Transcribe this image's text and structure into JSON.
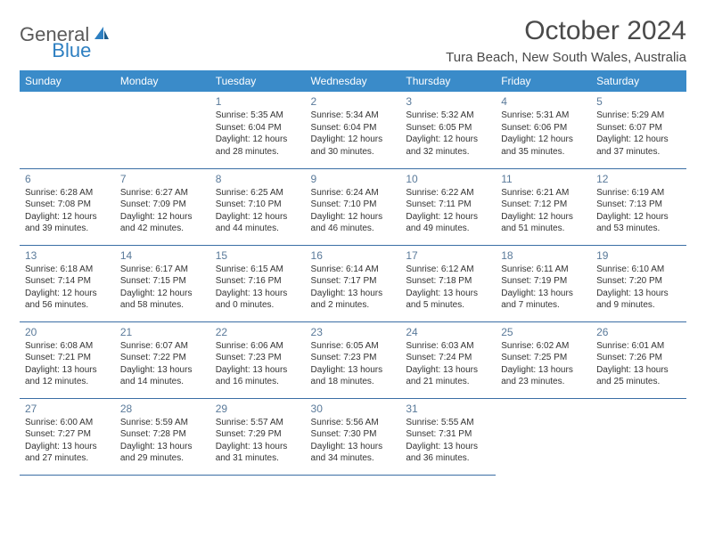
{
  "logo": {
    "part1": "General",
    "part2": "Blue"
  },
  "title": "October 2024",
  "location": "Tura Beach, New South Wales, Australia",
  "colors": {
    "header_bg": "#3a8bc9",
    "header_text": "#ffffff",
    "border": "#3a6ea5",
    "daynum": "#5a7a9a",
    "logo_gray": "#5a5a5a",
    "logo_blue": "#2d7fc1"
  },
  "weekdays": [
    "Sunday",
    "Monday",
    "Tuesday",
    "Wednesday",
    "Thursday",
    "Friday",
    "Saturday"
  ],
  "weeks": [
    [
      null,
      null,
      {
        "n": "1",
        "sr": "Sunrise: 5:35 AM",
        "ss": "Sunset: 6:04 PM",
        "d1": "Daylight: 12 hours",
        "d2": "and 28 minutes."
      },
      {
        "n": "2",
        "sr": "Sunrise: 5:34 AM",
        "ss": "Sunset: 6:04 PM",
        "d1": "Daylight: 12 hours",
        "d2": "and 30 minutes."
      },
      {
        "n": "3",
        "sr": "Sunrise: 5:32 AM",
        "ss": "Sunset: 6:05 PM",
        "d1": "Daylight: 12 hours",
        "d2": "and 32 minutes."
      },
      {
        "n": "4",
        "sr": "Sunrise: 5:31 AM",
        "ss": "Sunset: 6:06 PM",
        "d1": "Daylight: 12 hours",
        "d2": "and 35 minutes."
      },
      {
        "n": "5",
        "sr": "Sunrise: 5:29 AM",
        "ss": "Sunset: 6:07 PM",
        "d1": "Daylight: 12 hours",
        "d2": "and 37 minutes."
      }
    ],
    [
      {
        "n": "6",
        "sr": "Sunrise: 6:28 AM",
        "ss": "Sunset: 7:08 PM",
        "d1": "Daylight: 12 hours",
        "d2": "and 39 minutes."
      },
      {
        "n": "7",
        "sr": "Sunrise: 6:27 AM",
        "ss": "Sunset: 7:09 PM",
        "d1": "Daylight: 12 hours",
        "d2": "and 42 minutes."
      },
      {
        "n": "8",
        "sr": "Sunrise: 6:25 AM",
        "ss": "Sunset: 7:10 PM",
        "d1": "Daylight: 12 hours",
        "d2": "and 44 minutes."
      },
      {
        "n": "9",
        "sr": "Sunrise: 6:24 AM",
        "ss": "Sunset: 7:10 PM",
        "d1": "Daylight: 12 hours",
        "d2": "and 46 minutes."
      },
      {
        "n": "10",
        "sr": "Sunrise: 6:22 AM",
        "ss": "Sunset: 7:11 PM",
        "d1": "Daylight: 12 hours",
        "d2": "and 49 minutes."
      },
      {
        "n": "11",
        "sr": "Sunrise: 6:21 AM",
        "ss": "Sunset: 7:12 PM",
        "d1": "Daylight: 12 hours",
        "d2": "and 51 minutes."
      },
      {
        "n": "12",
        "sr": "Sunrise: 6:19 AM",
        "ss": "Sunset: 7:13 PM",
        "d1": "Daylight: 12 hours",
        "d2": "and 53 minutes."
      }
    ],
    [
      {
        "n": "13",
        "sr": "Sunrise: 6:18 AM",
        "ss": "Sunset: 7:14 PM",
        "d1": "Daylight: 12 hours",
        "d2": "and 56 minutes."
      },
      {
        "n": "14",
        "sr": "Sunrise: 6:17 AM",
        "ss": "Sunset: 7:15 PM",
        "d1": "Daylight: 12 hours",
        "d2": "and 58 minutes."
      },
      {
        "n": "15",
        "sr": "Sunrise: 6:15 AM",
        "ss": "Sunset: 7:16 PM",
        "d1": "Daylight: 13 hours",
        "d2": "and 0 minutes."
      },
      {
        "n": "16",
        "sr": "Sunrise: 6:14 AM",
        "ss": "Sunset: 7:17 PM",
        "d1": "Daylight: 13 hours",
        "d2": "and 2 minutes."
      },
      {
        "n": "17",
        "sr": "Sunrise: 6:12 AM",
        "ss": "Sunset: 7:18 PM",
        "d1": "Daylight: 13 hours",
        "d2": "and 5 minutes."
      },
      {
        "n": "18",
        "sr": "Sunrise: 6:11 AM",
        "ss": "Sunset: 7:19 PM",
        "d1": "Daylight: 13 hours",
        "d2": "and 7 minutes."
      },
      {
        "n": "19",
        "sr": "Sunrise: 6:10 AM",
        "ss": "Sunset: 7:20 PM",
        "d1": "Daylight: 13 hours",
        "d2": "and 9 minutes."
      }
    ],
    [
      {
        "n": "20",
        "sr": "Sunrise: 6:08 AM",
        "ss": "Sunset: 7:21 PM",
        "d1": "Daylight: 13 hours",
        "d2": "and 12 minutes."
      },
      {
        "n": "21",
        "sr": "Sunrise: 6:07 AM",
        "ss": "Sunset: 7:22 PM",
        "d1": "Daylight: 13 hours",
        "d2": "and 14 minutes."
      },
      {
        "n": "22",
        "sr": "Sunrise: 6:06 AM",
        "ss": "Sunset: 7:23 PM",
        "d1": "Daylight: 13 hours",
        "d2": "and 16 minutes."
      },
      {
        "n": "23",
        "sr": "Sunrise: 6:05 AM",
        "ss": "Sunset: 7:23 PM",
        "d1": "Daylight: 13 hours",
        "d2": "and 18 minutes."
      },
      {
        "n": "24",
        "sr": "Sunrise: 6:03 AM",
        "ss": "Sunset: 7:24 PM",
        "d1": "Daylight: 13 hours",
        "d2": "and 21 minutes."
      },
      {
        "n": "25",
        "sr": "Sunrise: 6:02 AM",
        "ss": "Sunset: 7:25 PM",
        "d1": "Daylight: 13 hours",
        "d2": "and 23 minutes."
      },
      {
        "n": "26",
        "sr": "Sunrise: 6:01 AM",
        "ss": "Sunset: 7:26 PM",
        "d1": "Daylight: 13 hours",
        "d2": "and 25 minutes."
      }
    ],
    [
      {
        "n": "27",
        "sr": "Sunrise: 6:00 AM",
        "ss": "Sunset: 7:27 PM",
        "d1": "Daylight: 13 hours",
        "d2": "and 27 minutes."
      },
      {
        "n": "28",
        "sr": "Sunrise: 5:59 AM",
        "ss": "Sunset: 7:28 PM",
        "d1": "Daylight: 13 hours",
        "d2": "and 29 minutes."
      },
      {
        "n": "29",
        "sr": "Sunrise: 5:57 AM",
        "ss": "Sunset: 7:29 PM",
        "d1": "Daylight: 13 hours",
        "d2": "and 31 minutes."
      },
      {
        "n": "30",
        "sr": "Sunrise: 5:56 AM",
        "ss": "Sunset: 7:30 PM",
        "d1": "Daylight: 13 hours",
        "d2": "and 34 minutes."
      },
      {
        "n": "31",
        "sr": "Sunrise: 5:55 AM",
        "ss": "Sunset: 7:31 PM",
        "d1": "Daylight: 13 hours",
        "d2": "and 36 minutes."
      },
      null,
      null
    ]
  ]
}
